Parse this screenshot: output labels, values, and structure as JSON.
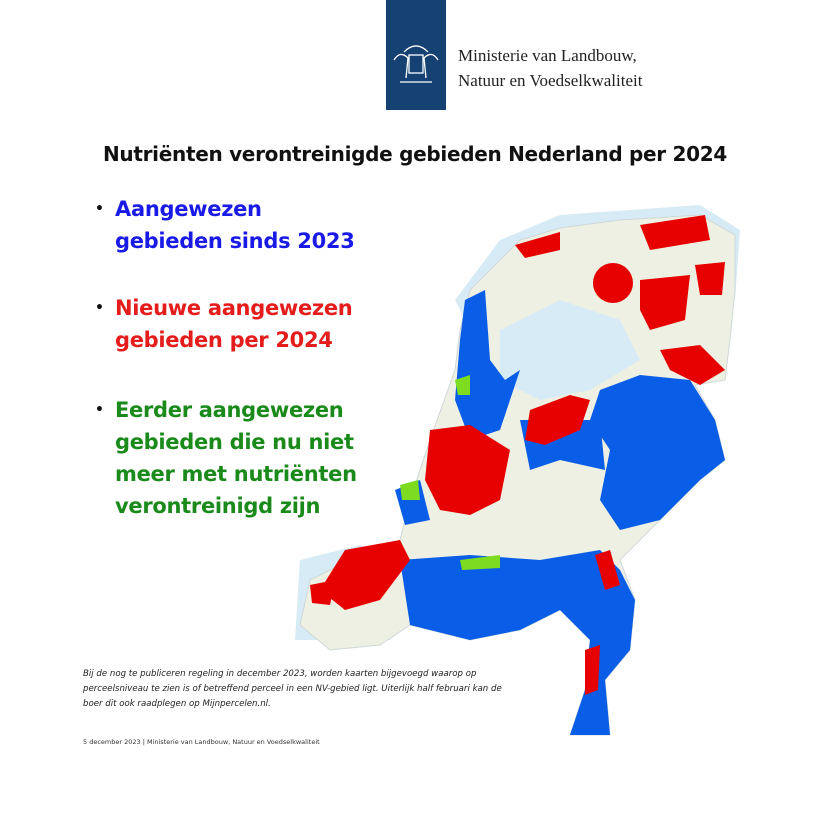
{
  "header": {
    "ministry": [
      "Ministerie van Landbouw,",
      "Natuur en Voedselkwaliteit"
    ]
  },
  "title": "Nutriënten verontreinigde gebieden Nederland per 2024",
  "legend": [
    {
      "lines": [
        "Aangewezen",
        "gebieden sinds 2023"
      ]
    },
    {
      "lines": [
        "Nieuwe aangewezen",
        "gebieden per 2024"
      ]
    },
    {
      "lines": [
        "Eerder aangewezen",
        "gebieden die nu niet",
        "meer met nutriënten",
        "verontreinigd zijn"
      ]
    }
  ],
  "footnote": [
    "Bij de nog te publiceren regeling in december 2023, worden kaarten bijgevoegd waarop op",
    "perceelsniveau te zien is of betreffend perceel in een NV-gebied ligt. Uiterlijk half februari kan de",
    "boer dit ook raadplegen op Mijnpercelen.nl."
  ],
  "footer": "5 december 2023 | Ministerie van Landbouw, Natuur en Voedselkwaliteit"
}
